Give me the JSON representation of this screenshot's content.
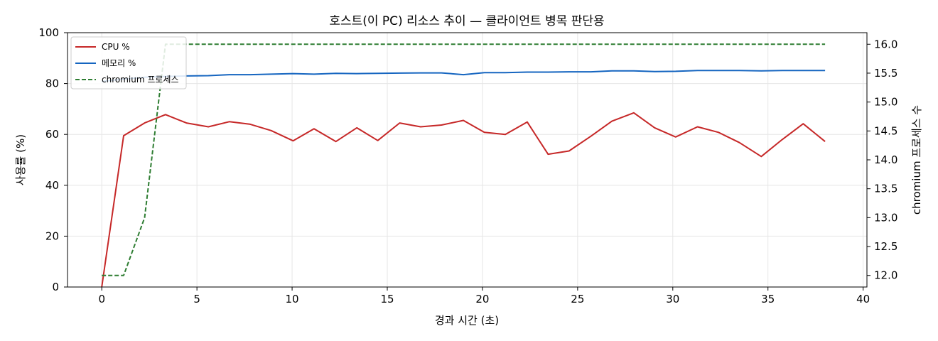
{
  "chart_data": {
    "type": "line",
    "title": "호스트(이 PC) 리소스 추이 — 클라이언트 병목 판단용",
    "xlabel": "경과 시간 (초)",
    "ylabel": "사용률 (%)",
    "y2label": "chromium 프로세스 수",
    "xlim": [
      -1.8,
      40.2
    ],
    "ylim": [
      0,
      100
    ],
    "y2lim": [
      11.8,
      16.2
    ],
    "xticks": [
      "0",
      "5",
      "10",
      "15",
      "20",
      "25",
      "30",
      "35",
      "40"
    ],
    "yticks": [
      "0",
      "20",
      "40",
      "60",
      "80",
      "100"
    ],
    "y2ticks": [
      "12.0",
      "12.5",
      "13.0",
      "13.5",
      "14.0",
      "14.5",
      "15.0",
      "15.5",
      "16.0"
    ],
    "grid": true,
    "legend_position": "top-left",
    "x": [
      0,
      1.15,
      2.25,
      3.35,
      4.45,
      5.6,
      6.7,
      7.8,
      8.9,
      10.05,
      11.15,
      12.3,
      13.4,
      14.5,
      15.65,
      16.75,
      17.85,
      19.0,
      20.1,
      21.2,
      22.35,
      23.45,
      24.55,
      25.7,
      26.8,
      27.95,
      29.05,
      30.15,
      31.3,
      32.4,
      33.5,
      34.65,
      35.75,
      36.85,
      38.0
    ],
    "series": [
      {
        "name": "CPU %",
        "axis": "left",
        "color": "#c62828",
        "style": "solid",
        "values": [
          0,
          59.5,
          64.5,
          67.8,
          64.5,
          63.0,
          65.0,
          64.0,
          61.5,
          57.5,
          62.2,
          57.2,
          62.6,
          57.6,
          64.5,
          63.0,
          63.7,
          65.5,
          60.8,
          60.0,
          64.9,
          52.2,
          53.5,
          59.3,
          65.2,
          68.5,
          62.6,
          59.0,
          63.0,
          60.8,
          56.8,
          51.3,
          58.0,
          64.2,
          57.2
        ]
      },
      {
        "name": "메모리 %",
        "axis": "left",
        "color": "#1565c0",
        "style": "solid",
        "values": [
          80.8,
          81.8,
          82.5,
          82.8,
          83.0,
          83.1,
          83.5,
          83.5,
          83.7,
          83.9,
          83.7,
          84.0,
          83.9,
          84.0,
          84.1,
          84.2,
          84.2,
          83.5,
          84.3,
          84.3,
          84.5,
          84.5,
          84.6,
          84.6,
          85.0,
          85.0,
          84.7,
          84.8,
          85.1,
          85.1,
          85.1,
          85.0,
          85.1,
          85.1,
          85.1
        ]
      },
      {
        "name": "chromium 프로세스",
        "axis": "right",
        "color": "#2e7d32",
        "style": "dashed",
        "values": [
          12,
          12,
          13,
          16,
          16,
          16,
          16,
          16,
          16,
          16,
          16,
          16,
          16,
          16,
          16,
          16,
          16,
          16,
          16,
          16,
          16,
          16,
          16,
          16,
          16,
          16,
          16,
          16,
          16,
          16,
          16,
          16,
          16,
          16,
          16
        ]
      }
    ]
  }
}
